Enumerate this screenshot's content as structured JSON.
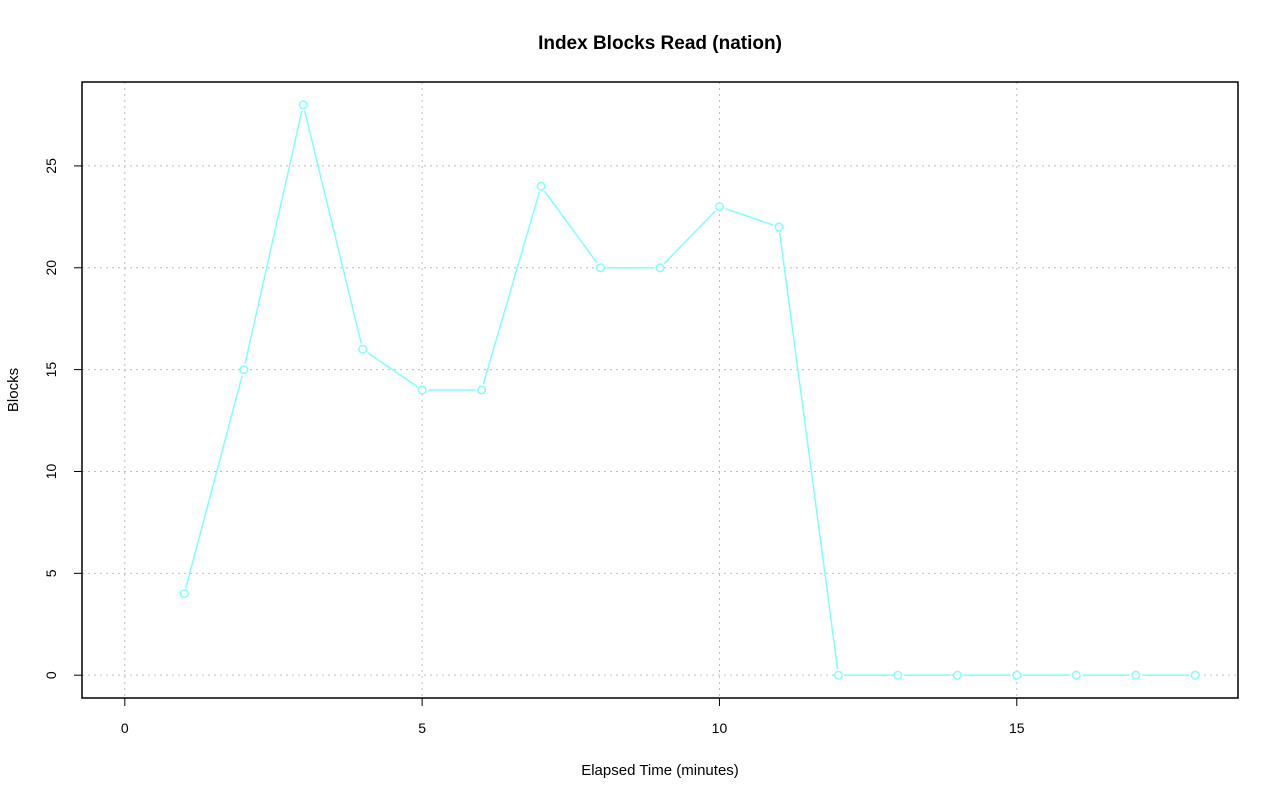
{
  "chart_data": {
    "type": "line",
    "title": "Index Blocks Read (nation)",
    "xlabel": "Elapsed Time (minutes)",
    "ylabel": "Blocks",
    "xlim": [
      -0.72,
      18.72
    ],
    "ylim": [
      -1.12,
      29.12
    ],
    "xticks": [
      0,
      5,
      10,
      15
    ],
    "yticks": [
      0,
      5,
      10,
      15,
      20,
      25
    ],
    "grid": true,
    "series": [
      {
        "color": "#7fffff",
        "x": [
          1,
          2,
          3,
          4,
          5,
          6,
          7,
          8,
          9,
          10,
          11,
          12,
          13,
          14,
          15,
          16,
          17,
          18
        ],
        "y": [
          4,
          15,
          28,
          16,
          14,
          14,
          24,
          20,
          20,
          23,
          22,
          0,
          0,
          0,
          0,
          0,
          0,
          0
        ]
      }
    ]
  }
}
